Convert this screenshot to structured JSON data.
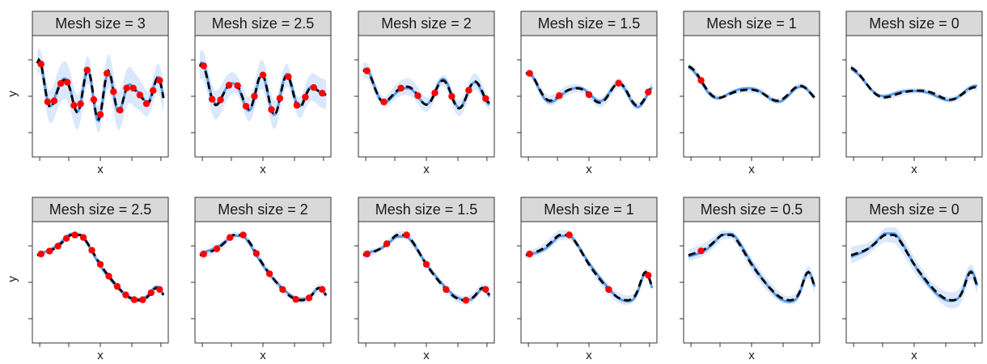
{
  "figure": {
    "x_axis_label": "x",
    "y_axis_label": "y",
    "colors": {
      "truth_line": "#000000",
      "mean_line": "#5b9bea",
      "band": "#dbe8fb",
      "points": "#ff0000",
      "strip": "#d9d9d9",
      "panel_border": "#333333"
    }
  },
  "chart_data": [
    {
      "row": 1,
      "type": "line",
      "xlabel": "x",
      "ylabel": "y",
      "panels": [
        {
          "title": "Mesh size = 3",
          "points": 19
        },
        {
          "title": "Mesh size = 2.5",
          "points": 15
        },
        {
          "title": "Mesh size = 2",
          "points": 8
        },
        {
          "title": "Mesh size = 1.5",
          "points": 5
        },
        {
          "title": "Mesh size = 1",
          "points": 1
        },
        {
          "title": "Mesh size = 0",
          "points": 0
        }
      ],
      "series": [
        {
          "name": "truth",
          "style": "black dashed"
        },
        {
          "name": "mean",
          "style": "blue solid"
        },
        {
          "name": "band",
          "style": "light blue ribbon"
        },
        {
          "name": "observations",
          "style": "red points"
        }
      ]
    },
    {
      "row": 2,
      "type": "line",
      "xlabel": "x",
      "ylabel": "y",
      "panels": [
        {
          "title": "Mesh size = 2.5",
          "points": 15
        },
        {
          "title": "Mesh size = 2",
          "points": 10
        },
        {
          "title": "Mesh size = 1.5",
          "points": 7
        },
        {
          "title": "Mesh size = 1",
          "points": 4
        },
        {
          "title": "Mesh size = 0.5",
          "points": 1
        },
        {
          "title": "Mesh size = 0",
          "points": 0
        }
      ],
      "series": [
        {
          "name": "truth",
          "style": "black dashed"
        },
        {
          "name": "mean",
          "style": "blue solid"
        },
        {
          "name": "band",
          "style": "light blue ribbon"
        },
        {
          "name": "observations",
          "style": "red points"
        }
      ]
    }
  ]
}
